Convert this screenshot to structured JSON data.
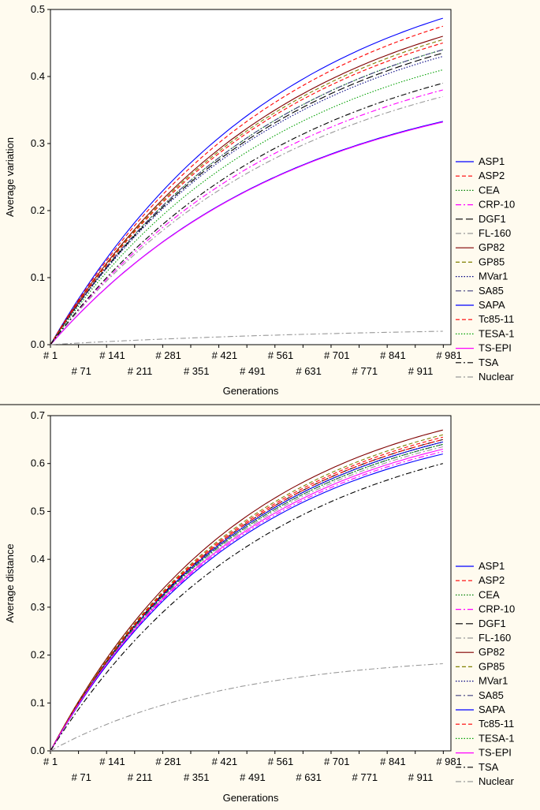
{
  "chart_data": [
    {
      "type": "line",
      "title": "",
      "xlabel": "Generations",
      "ylabel": "Average variation",
      "x_tick_labels": [
        "# 1",
        "# 71",
        "# 141",
        "# 211",
        "# 281",
        "# 351",
        "# 421",
        "# 491",
        "# 561",
        "# 631",
        "# 701",
        "# 771",
        "# 841",
        "# 911",
        "# 981"
      ],
      "xlim": [
        1,
        1000
      ],
      "ylim": [
        0,
        0.5
      ],
      "y_ticks": [
        "0.0",
        "0.1",
        "0.2",
        "0.3",
        "0.4",
        "0.5"
      ],
      "grid": false,
      "legend_position": "right",
      "series": [
        {
          "name": "ASP1",
          "final": 0.487,
          "k": 1.7,
          "color": "#0000ff",
          "dash": "solid"
        },
        {
          "name": "ASP2",
          "final": 0.475,
          "k": 1.7,
          "color": "#ff0000",
          "dash": "dash"
        },
        {
          "name": "CEA",
          "final": 0.44,
          "k": 1.7,
          "color": "#008000",
          "dash": "dot"
        },
        {
          "name": "CRP-10",
          "final": 0.38,
          "k": 1.6,
          "color": "#ff00ff",
          "dash": "dashdot"
        },
        {
          "name": "DGF1",
          "final": 0.435,
          "k": 1.7,
          "color": "#000000",
          "dash": "longdash"
        },
        {
          "name": "FL-160",
          "final": 0.37,
          "k": 1.6,
          "color": "#999999",
          "dash": "dashdot"
        },
        {
          "name": "GP82",
          "final": 0.46,
          "k": 1.7,
          "color": "#800000",
          "dash": "solid"
        },
        {
          "name": "GP85",
          "final": 0.455,
          "k": 1.7,
          "color": "#808000",
          "dash": "dash"
        },
        {
          "name": "MVar1",
          "final": 0.43,
          "k": 1.7,
          "color": "#000080",
          "dash": "dot"
        },
        {
          "name": "SA85",
          "final": 0.44,
          "k": 1.7,
          "color": "#404080",
          "dash": "dashdot"
        },
        {
          "name": "SAPA",
          "final": 0.333,
          "k": 1.6,
          "color": "#0000ff",
          "dash": "solid"
        },
        {
          "name": "Tc85-11",
          "final": 0.45,
          "k": 1.7,
          "color": "#ff0000",
          "dash": "dash"
        },
        {
          "name": "TESA-1",
          "final": 0.41,
          "k": 1.7,
          "color": "#00a000",
          "dash": "dot"
        },
        {
          "name": "TS-EPI",
          "final": 0.332,
          "k": 1.6,
          "color": "#ff00ff",
          "dash": "solid"
        },
        {
          "name": "TSA",
          "final": 0.39,
          "k": 1.6,
          "color": "#000000",
          "dash": "dashdot"
        },
        {
          "name": "Nuclear",
          "final": 0.02,
          "k": 1.2,
          "color": "#999999",
          "dash": "dashdot"
        }
      ]
    },
    {
      "type": "line",
      "title": "",
      "xlabel": "Generations",
      "ylabel": "Average distance",
      "x_tick_labels": [
        "# 1",
        "# 71",
        "# 141",
        "# 211",
        "# 281",
        "# 351",
        "# 421",
        "# 491",
        "# 561",
        "# 631",
        "# 701",
        "# 771",
        "# 841",
        "# 911",
        "# 981"
      ],
      "xlim": [
        1,
        1000
      ],
      "ylim": [
        0,
        0.7
      ],
      "y_ticks": [
        "0.0",
        "0.1",
        "0.2",
        "0.3",
        "0.4",
        "0.5",
        "0.6",
        "0.7"
      ],
      "grid": false,
      "legend_position": "right",
      "series": [
        {
          "name": "ASP1",
          "final": 0.645,
          "k": 2.0,
          "color": "#0000ff",
          "dash": "solid"
        },
        {
          "name": "ASP2",
          "final": 0.655,
          "k": 2.0,
          "color": "#ff0000",
          "dash": "dash"
        },
        {
          "name": "CEA",
          "final": 0.64,
          "k": 2.0,
          "color": "#008000",
          "dash": "dot"
        },
        {
          "name": "CRP-10",
          "final": 0.625,
          "k": 2.0,
          "color": "#ff00ff",
          "dash": "dashdot"
        },
        {
          "name": "DGF1",
          "final": 0.65,
          "k": 2.0,
          "color": "#000000",
          "dash": "longdash"
        },
        {
          "name": "FL-160",
          "final": 0.635,
          "k": 2.0,
          "color": "#999999",
          "dash": "dashdot"
        },
        {
          "name": "GP82",
          "final": 0.67,
          "k": 2.0,
          "color": "#800000",
          "dash": "solid"
        },
        {
          "name": "GP85",
          "final": 0.66,
          "k": 2.0,
          "color": "#808000",
          "dash": "dash"
        },
        {
          "name": "MVar1",
          "final": 0.645,
          "k": 2.0,
          "color": "#000080",
          "dash": "dot"
        },
        {
          "name": "SA85",
          "final": 0.64,
          "k": 2.0,
          "color": "#404080",
          "dash": "dashdot"
        },
        {
          "name": "SAPA",
          "final": 0.62,
          "k": 2.0,
          "color": "#0000ff",
          "dash": "solid"
        },
        {
          "name": "Tc85-11",
          "final": 0.65,
          "k": 2.0,
          "color": "#ff0000",
          "dash": "dash"
        },
        {
          "name": "TESA-1",
          "final": 0.64,
          "k": 2.0,
          "color": "#00a000",
          "dash": "dot"
        },
        {
          "name": "TS-EPI",
          "final": 0.63,
          "k": 2.0,
          "color": "#ff00ff",
          "dash": "solid"
        },
        {
          "name": "TSA",
          "final": 0.6,
          "k": 1.8,
          "color": "#000000",
          "dash": "dashdot"
        },
        {
          "name": "Nuclear",
          "final": 0.182,
          "k": 2.2,
          "color": "#999999",
          "dash": "dashdot"
        }
      ]
    }
  ]
}
